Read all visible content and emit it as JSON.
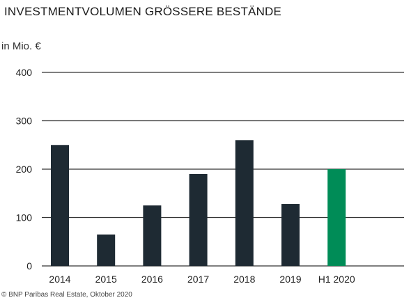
{
  "chart_data": {
    "type": "bar",
    "title": "INVESTMENTVOLUMEN GRÖSSERE BESTÄNDE",
    "ylabel": "in Mio. €",
    "xlabel": "",
    "categories": [
      "2014",
      "2015",
      "2016",
      "2017",
      "2018",
      "2019",
      "H1 2020"
    ],
    "values": [
      250,
      65,
      125,
      190,
      260,
      128,
      200
    ],
    "bar_colors": [
      "#1e2a33",
      "#1e2a33",
      "#1e2a33",
      "#1e2a33",
      "#1e2a33",
      "#1e2a33",
      "#008c57"
    ],
    "yticks": [
      0,
      100,
      200,
      300,
      400
    ],
    "ylim": [
      0,
      400
    ],
    "grid": true
  },
  "source": "© BNP Paribas Real Estate, Oktober 2020"
}
